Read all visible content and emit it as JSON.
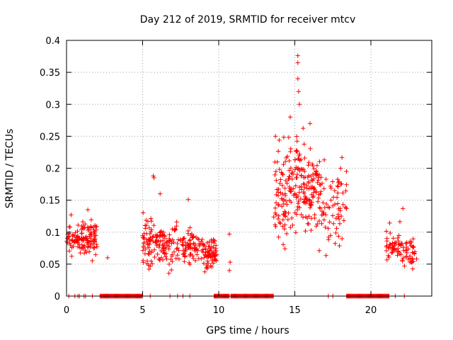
{
  "chart_data": {
    "type": "scatter",
    "title": "Day 212 of 2019, SRMTID for receiver mtcv",
    "xlabel": "GPS time / hours",
    "ylabel": "SRMTID / TECUs",
    "xlim": [
      0,
      24
    ],
    "ylim": [
      0,
      0.4
    ],
    "xticks": [
      "0",
      "5",
      "10",
      "15",
      "20"
    ],
    "xtick_values": [
      0,
      5,
      10,
      15,
      20
    ],
    "yticks": [
      "0",
      "0.05",
      "0.1",
      "0.15",
      "0.2",
      "0.25",
      "0.3",
      "0.35",
      "0.4"
    ],
    "ytick_values": [
      0,
      0.05,
      0.1,
      0.15,
      0.2,
      0.25,
      0.3,
      0.35,
      0.4
    ],
    "grid": true,
    "marker": "+",
    "series": [
      {
        "name": "SRMTID",
        "color": "#ff0000",
        "clusters": [
          {
            "x_start": 0.0,
            "x_end": 1.1,
            "y_min": 0.06,
            "y_max": 0.12,
            "count": 60
          },
          {
            "x_start": 1.1,
            "x_end": 2.0,
            "y_min": 0.045,
            "y_max": 0.135,
            "count": 70
          },
          {
            "x_start": 5.0,
            "x_end": 6.0,
            "y_min": 0.03,
            "y_max": 0.14,
            "count": 70
          },
          {
            "x_start": 6.0,
            "x_end": 7.5,
            "y_min": 0.03,
            "y_max": 0.13,
            "count": 80
          },
          {
            "x_start": 7.5,
            "x_end": 9.0,
            "y_min": 0.04,
            "y_max": 0.12,
            "count": 80
          },
          {
            "x_start": 9.0,
            "x_end": 9.9,
            "y_min": 0.03,
            "y_max": 0.1,
            "count": 70
          },
          {
            "x_start": 13.6,
            "x_end": 14.6,
            "y_min": 0.035,
            "y_max": 0.28,
            "count": 70
          },
          {
            "x_start": 14.6,
            "x_end": 15.6,
            "y_min": 0.07,
            "y_max": 0.29,
            "count": 80
          },
          {
            "x_start": 15.6,
            "x_end": 16.6,
            "y_min": 0.07,
            "y_max": 0.26,
            "count": 80
          },
          {
            "x_start": 16.6,
            "x_end": 18.4,
            "y_min": 0.05,
            "y_max": 0.24,
            "count": 80
          },
          {
            "x_start": 21.0,
            "x_end": 22.0,
            "y_min": 0.04,
            "y_max": 0.12,
            "count": 50
          },
          {
            "x_start": 22.0,
            "x_end": 22.9,
            "y_min": 0.035,
            "y_max": 0.1,
            "count": 40
          }
        ],
        "points": [
          [
            0.3,
            0.127
          ],
          [
            1.4,
            0.135
          ],
          [
            2.7,
            0.06
          ],
          [
            5.7,
            0.188
          ],
          [
            5.75,
            0.185
          ],
          [
            6.15,
            0.16
          ],
          [
            8.0,
            0.151
          ],
          [
            10.7,
            0.097
          ],
          [
            10.7,
            0.04
          ],
          [
            10.75,
            0.053
          ],
          [
            15.2,
            0.376
          ],
          [
            15.2,
            0.365
          ],
          [
            15.2,
            0.34
          ],
          [
            15.25,
            0.32
          ],
          [
            15.3,
            0.3
          ],
          [
            14.7,
            0.28
          ],
          [
            16.0,
            0.27
          ],
          [
            22.1,
            0.137
          ],
          [
            23.0,
            0.058
          ]
        ],
        "zero_ranges": [
          [
            2.2,
            5.0
          ],
          [
            9.7,
            10.7
          ],
          [
            10.8,
            13.6
          ],
          [
            18.4,
            21.2
          ]
        ],
        "zero_points": [
          0.15,
          0.55,
          0.75,
          0.85,
          1.15,
          1.25,
          1.7,
          5.5,
          6.8,
          7.3,
          7.65,
          8.1,
          17.2,
          17.5,
          21.6,
          22.2
        ]
      }
    ]
  }
}
